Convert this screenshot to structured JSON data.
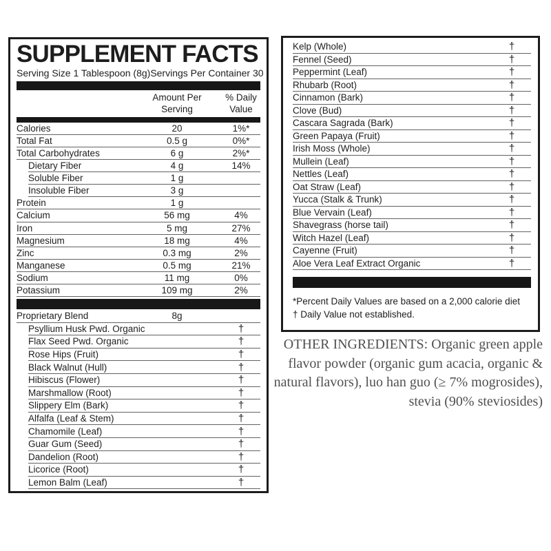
{
  "panel_left": {
    "title": "SUPPLEMENT FACTS",
    "serving_size": "Serving Size 1 Tablespoon (8g)",
    "servings_per_container": "Servings Per Container 30",
    "col_headers": {
      "amount": [
        "Amount Per",
        "Serving"
      ],
      "dv": [
        "% Daily",
        "Value"
      ]
    },
    "nutrients": [
      {
        "name": "Calories",
        "amount": "20",
        "dv": "1%*",
        "indent": 0
      },
      {
        "name": "Total Fat",
        "amount": "0.5 g",
        "dv": "0%*",
        "indent": 0
      },
      {
        "name": "Total Carbohydrates",
        "amount": "6 g",
        "dv": "2%*",
        "indent": 0
      },
      {
        "name": "Dietary Fiber",
        "amount": "4 g",
        "dv": "14%",
        "indent": 1
      },
      {
        "name": "Soluble Fiber",
        "amount": "1 g",
        "dv": "",
        "indent": 1
      },
      {
        "name": "Insoluble Fiber",
        "amount": "3 g",
        "dv": "",
        "indent": 1
      },
      {
        "name": "Protein",
        "amount": "1 g",
        "dv": "",
        "indent": 0
      },
      {
        "name": "Calcium",
        "amount": "56 mg",
        "dv": "4%",
        "indent": 0
      },
      {
        "name": "Iron",
        "amount": "5 mg",
        "dv": "27%",
        "indent": 0
      },
      {
        "name": "Magnesium",
        "amount": "18 mg",
        "dv": "4%",
        "indent": 0
      },
      {
        "name": "Zinc",
        "amount": "0.3 mg",
        "dv": "2%",
        "indent": 0
      },
      {
        "name": "Manganese",
        "amount": "0.5 mg",
        "dv": "21%",
        "indent": 0
      },
      {
        "name": "Sodium",
        "amount": "11 mg",
        "dv": "0%",
        "indent": 0
      },
      {
        "name": "Potassium",
        "amount": "109 mg",
        "dv": "2%",
        "indent": 0
      }
    ],
    "blend": {
      "name": "Proprietary Blend",
      "amount": "8g"
    },
    "blend_items": [
      "Psyllium Husk Pwd. Organic",
      "Flax Seed Pwd. Organic",
      "Rose Hips (Fruit)",
      "Black Walnut (Hull)",
      "Hibiscus (Flower)",
      "Marshmallow (Root)",
      "Slippery Elm (Bark)",
      "Alfalfa (Leaf & Stem)",
      "Chamomile (Leaf)",
      "Guar Gum (Seed)",
      "Dandelion (Root)",
      "Licorice (Root)",
      "Lemon Balm (Leaf)"
    ],
    "dagger": "†"
  },
  "panel_right": {
    "items": [
      "Kelp (Whole)",
      "Fennel (Seed)",
      "Peppermint (Leaf)",
      "Rhubarb (Root)",
      "Cinnamon (Bark)",
      "Clove (Bud)",
      "Cascara Sagrada (Bark)",
      "Green Papaya (Fruit)",
      "Irish Moss (Whole)",
      "Mullein (Leaf)",
      "Nettles (Leaf)",
      "Oat Straw (Leaf)",
      "Yucca (Stalk & Trunk)",
      "Blue Vervain (Leaf)",
      "Shavegrass (horse tail)",
      "Witch Hazel (Leaf)",
      "Cayenne (Fruit)",
      "Aloe Vera Leaf Extract Organic"
    ],
    "dagger": "†",
    "footnote_asterisk": "*Percent Daily Values are based on a 2,000 calorie diet",
    "footnote_dagger": "† Daily Value not established."
  },
  "other_ingredients": "OTHER INGREDIENTS: Organic green apple flavor powder (organic gum acacia, organic & natural flavors), luo han guo (≥ 7% mogrosides), stevia (90% steviosides)",
  "colors": {
    "ink": "#1d1d1d",
    "bar": "#171717",
    "separator_line": "#616161",
    "muted_text": "#4f4f4f"
  }
}
